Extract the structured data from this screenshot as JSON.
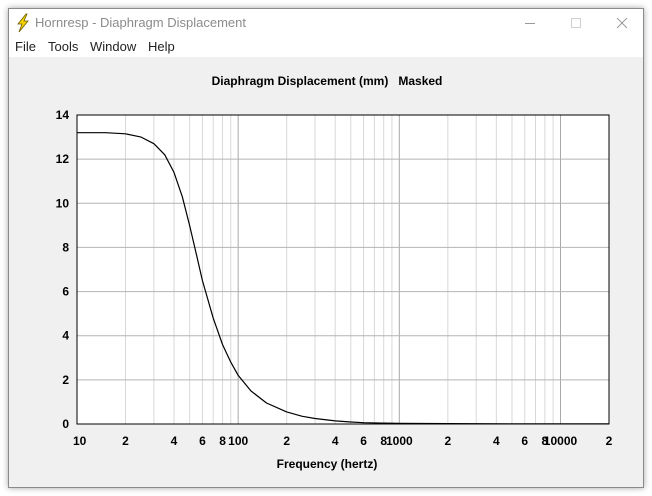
{
  "window": {
    "title": "Hornresp - Diaphragm Displacement",
    "icon": "lightning-bolt-icon"
  },
  "menu": [
    {
      "label": "File"
    },
    {
      "label": "Tools"
    },
    {
      "label": "Window"
    },
    {
      "label": "Help"
    }
  ],
  "chart_data": {
    "type": "line",
    "title": "Diaphragm Displacement (mm)",
    "subtitle": "Masked",
    "xlabel": "Frequency (hertz)",
    "ylabel": "",
    "xscale": "log",
    "xlim": [
      10,
      20000
    ],
    "ylim": [
      0,
      14
    ],
    "grid": true,
    "yticks": [
      0,
      2,
      4,
      6,
      8,
      10,
      12,
      14
    ],
    "xtick_labels": [
      {
        "value": 10,
        "label": "10"
      },
      {
        "value": 20,
        "label": "2"
      },
      {
        "value": 40,
        "label": "4"
      },
      {
        "value": 60,
        "label": "6"
      },
      {
        "value": 80,
        "label": "8"
      },
      {
        "value": 100,
        "label": "100"
      },
      {
        "value": 200,
        "label": "2"
      },
      {
        "value": 400,
        "label": "4"
      },
      {
        "value": 600,
        "label": "6"
      },
      {
        "value": 800,
        "label": "8"
      },
      {
        "value": 1000,
        "label": "1000"
      },
      {
        "value": 2000,
        "label": "2"
      },
      {
        "value": 4000,
        "label": "4"
      },
      {
        "value": 6000,
        "label": "6"
      },
      {
        "value": 8000,
        "label": "8"
      },
      {
        "value": 10000,
        "label": "10000"
      },
      {
        "value": 20000,
        "label": "2"
      }
    ],
    "series": [
      {
        "color": "#000000",
        "x": [
          10,
          15,
          20,
          25,
          30,
          35,
          40,
          45,
          50,
          55,
          60,
          70,
          80,
          90,
          100,
          120,
          150,
          200,
          250,
          300,
          400,
          500,
          600,
          800,
          1000,
          2000,
          5000,
          10000,
          20000
        ],
        "y": [
          13.2,
          13.2,
          13.15,
          13.0,
          12.7,
          12.2,
          11.4,
          10.3,
          9.0,
          7.7,
          6.5,
          4.8,
          3.6,
          2.8,
          2.2,
          1.5,
          0.95,
          0.55,
          0.35,
          0.25,
          0.14,
          0.09,
          0.06,
          0.04,
          0.03,
          0.02,
          0.01,
          0.01,
          0.01
        ]
      }
    ]
  }
}
